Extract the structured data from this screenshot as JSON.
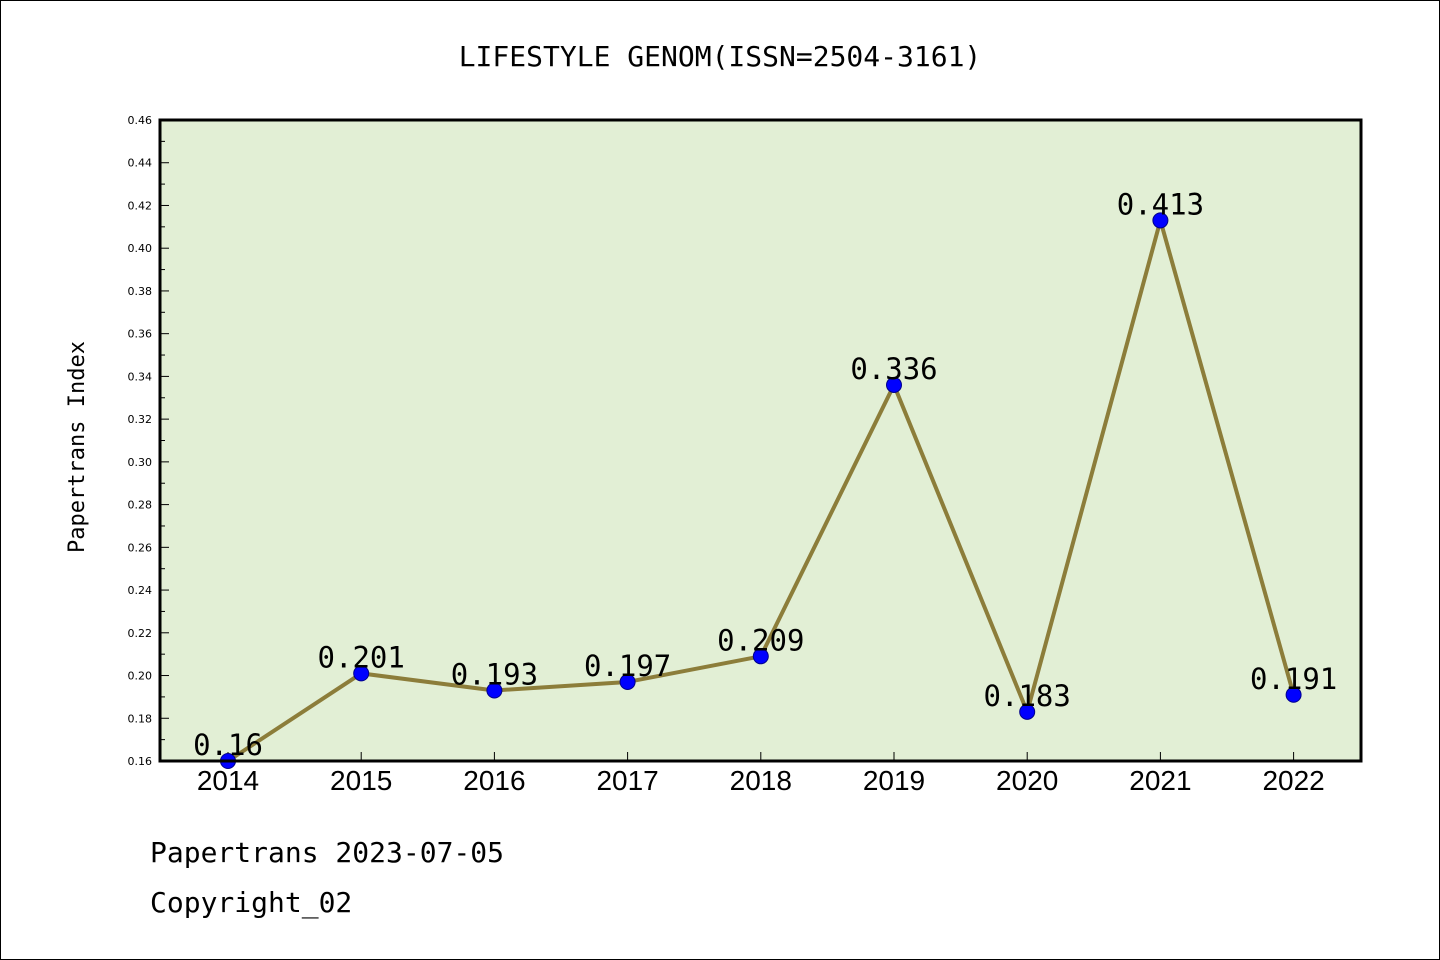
{
  "chart_data": {
    "type": "line",
    "title": "LIFESTYLE GENOM(ISSN=2504-3161)",
    "xlabel": "",
    "ylabel": "Papertrans Index",
    "categories": [
      "2014",
      "2015",
      "2016",
      "2017",
      "2018",
      "2019",
      "2020",
      "2021",
      "2022"
    ],
    "series": [
      {
        "values": [
          0.16,
          0.201,
          0.193,
          0.197,
          0.209,
          0.336,
          0.183,
          0.413,
          0.191
        ],
        "data_labels": [
          "0.16",
          "0.201",
          "0.193",
          "0.197",
          "0.209",
          "0.336",
          "0.183",
          "0.413",
          "0.191"
        ]
      }
    ],
    "ylim": [
      0.16,
      0.46
    ],
    "yticks": [
      "0.16",
      "0.18",
      "0.20",
      "0.22",
      "0.24",
      "0.26",
      "0.28",
      "0.30",
      "0.32",
      "0.34",
      "0.36",
      "0.38",
      "0.40",
      "0.42",
      "0.44",
      "0.46"
    ],
    "grid": false,
    "legend": "none"
  },
  "footer": {
    "line1": "Papertrans 2023-07-05",
    "line2": "Copyright_02"
  },
  "colors": {
    "plot_background": "#e2efd5",
    "line": "#8c7d3a",
    "marker_fill": "#0000ff",
    "marker_edge": "#00008b",
    "axis": "#000000"
  }
}
